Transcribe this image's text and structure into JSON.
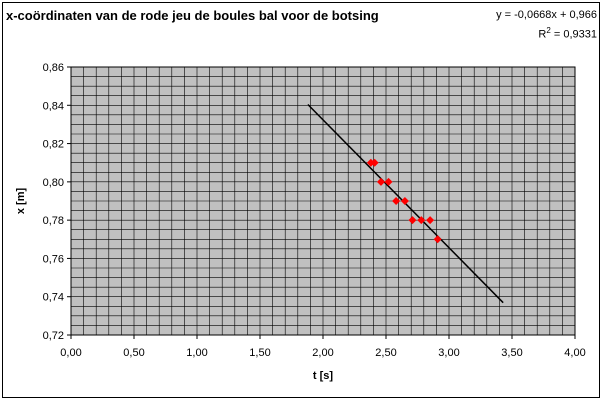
{
  "chart_data": {
    "type": "scatter",
    "title": "x-coördinaten van de rode jeu de boules bal voor de botsing",
    "xlabel": "t [s]",
    "ylabel": "x [m]",
    "xlim": [
      0,
      4
    ],
    "ylim": [
      0.72,
      0.86
    ],
    "xticks": [
      "0,00",
      "0,50",
      "1,00",
      "1,50",
      "2,00",
      "2,50",
      "3,00",
      "3,50",
      "4,00"
    ],
    "yticks": [
      "0,72",
      "0,74",
      "0,76",
      "0,78",
      "0,80",
      "0,82",
      "0,84",
      "0,86"
    ],
    "grid": true,
    "points": [
      {
        "x": 2.38,
        "y": 0.81
      },
      {
        "x": 2.41,
        "y": 0.81
      },
      {
        "x": 2.46,
        "y": 0.8
      },
      {
        "x": 2.52,
        "y": 0.8
      },
      {
        "x": 2.58,
        "y": 0.79
      },
      {
        "x": 2.65,
        "y": 0.79
      },
      {
        "x": 2.71,
        "y": 0.78
      },
      {
        "x": 2.78,
        "y": 0.78
      },
      {
        "x": 2.85,
        "y": 0.78
      },
      {
        "x": 2.91,
        "y": 0.77
      }
    ],
    "trendline": {
      "slope": -0.0668,
      "intercept": 0.966,
      "x_start": 1.88,
      "x_end": 3.43
    },
    "equation": "y = -0,0668x + 0,966",
    "r_squared_label": "R",
    "r_squared_value": "= 0,9331",
    "colors": {
      "plot_bg": "#c0c0c0",
      "grid": "#000000",
      "marker": "#ff0000",
      "trendline": "#000000"
    }
  }
}
